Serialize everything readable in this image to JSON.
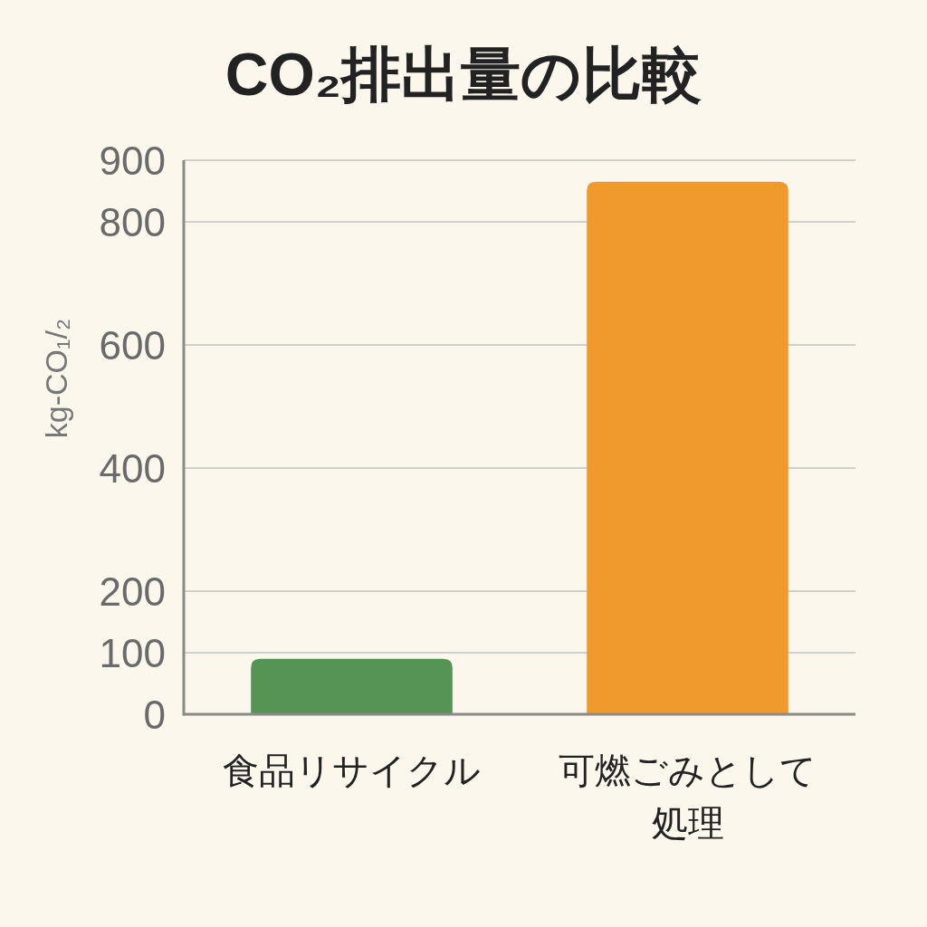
{
  "chart_data": {
    "type": "bar",
    "title": "CO₂排出量の比較",
    "ylabel": "kg-CO₁/₂",
    "categories": [
      "食品リサイクル",
      "可燃ごみとして処理"
    ],
    "values": [
      90,
      865
    ],
    "colors": [
      "#559455",
      "#f09a2e"
    ],
    "ylim": [
      0,
      900
    ],
    "yticks": [
      0,
      100,
      200,
      400,
      600,
      800,
      900
    ],
    "grid": "y"
  }
}
